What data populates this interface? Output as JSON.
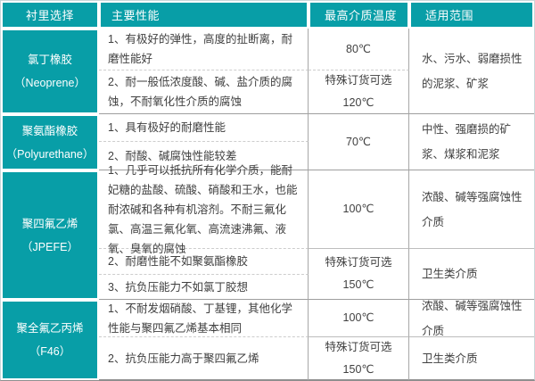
{
  "colors": {
    "accent": "#089ea7",
    "grid_line": "#9e9e9e",
    "dashed_line": "#cdcdcd"
  },
  "header": {
    "col1": "衬里选择",
    "col2": "主要性能",
    "col3": "最高介质温度",
    "col4": "适用范围"
  },
  "groups": [
    {
      "material": "氯丁橡胶",
      "material_en": "（Neoprene）",
      "performance": [
        "1、有极好的弹性，高度的扯断离，耐磨性能好",
        "2、耐一般低浓度酸、碱、盐介质的腐蚀，不耐氧化性介质的腐蚀"
      ],
      "temps": [
        {
          "line1": "80℃"
        },
        {
          "line1": "特殊订货可选",
          "line2": "120℃"
        }
      ],
      "applications": [
        "水、污水、弱磨损性的泥浆、矿浆"
      ]
    },
    {
      "material": "聚氨酯橡胶",
      "material_en": "（Polyurethane）",
      "performance": [
        "1、具有极好的耐磨性能",
        "2、耐酸、碱腐蚀性能较差"
      ],
      "temps": [
        {
          "line1": "70℃"
        }
      ],
      "applications": [
        "中性、强磨损的矿浆、煤浆和泥浆"
      ]
    },
    {
      "material": "聚四氟乙烯",
      "material_en": "（JPEFE）",
      "performance": [
        "1、几乎可以抵抗所有化学介质，能耐妃糖的盐酸、硫酸、硝酸和王水，也能耐浓碱和各种有机溶剂。不耐三氟化氯、高温三氟化氧、高流速沸氟、液氧、臭氧的腐蚀",
        "2、耐磨性能不如聚氨酯橡胶",
        "3、抗负压能力不如氯丁胶想"
      ],
      "temps": [
        {
          "line1": "100℃"
        },
        {
          "line1": "特殊订货可选",
          "line2": "150℃"
        }
      ],
      "applications": [
        "浓酸、碱等强腐蚀性介质",
        "卫生类介质"
      ]
    },
    {
      "material": "聚全氟乙丙烯",
      "material_en": "（F46）",
      "performance": [
        "1、不耐发烟硝酸、丁基锂，其他化学性能与聚四氟乙烯基本相同",
        "2、抗负压能力高于聚四氟乙烯"
      ],
      "temps": [
        {
          "line1": "100℃"
        },
        {
          "line1": "特殊订货可选",
          "line2": "150℃"
        }
      ],
      "applications": [
        "浓酸、碱等强腐蚀性介质",
        "卫生类介质"
      ]
    }
  ]
}
